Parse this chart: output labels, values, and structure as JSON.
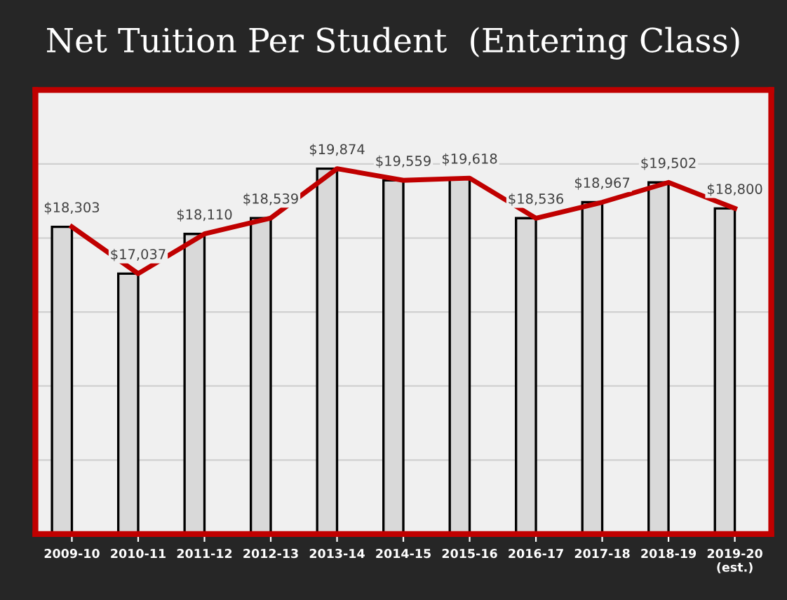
{
  "chart_data": {
    "type": "bar",
    "title": "Net Tuition Per Student  (Entering Class)",
    "categories": [
      "2009-10",
      "2010-11",
      "2011-12",
      "2012-13",
      "2013-14",
      "2014-15",
      "2015-16",
      "2016-17",
      "2017-18",
      "2018-19",
      "2019-20\n(est.)"
    ],
    "series": [
      {
        "color": "#d9d9d9",
        "values": [
          18303,
          17037,
          18110,
          18539,
          19874,
          19559,
          19618,
          18536,
          18967,
          19502,
          18800
        ],
        "value_labels": [
          "$18,303",
          "$17,037",
          "$18,110",
          "$18,539",
          "$19,874",
          "$19,559",
          "$19,618",
          "$18,536",
          "$18,967",
          "$19,502",
          "$18,800"
        ]
      },
      {
        "type": "line",
        "color": "#c00000",
        "values": [
          18303,
          17037,
          18110,
          18539,
          19874,
          19559,
          19618,
          18536,
          18967,
          19502,
          18800
        ]
      }
    ],
    "ylim": [
      10000,
      22000
    ],
    "yticks": [
      {
        "value": 12000,
        "label": null
      },
      {
        "value": 14000,
        "label": null
      },
      {
        "value": 16000,
        "label": null
      },
      {
        "value": 18000,
        "label": null
      },
      {
        "value": 20000,
        "label": null
      }
    ],
    "tick_labels": "x",
    "grid": "y",
    "marker": "none",
    "line_style": "solid"
  }
}
